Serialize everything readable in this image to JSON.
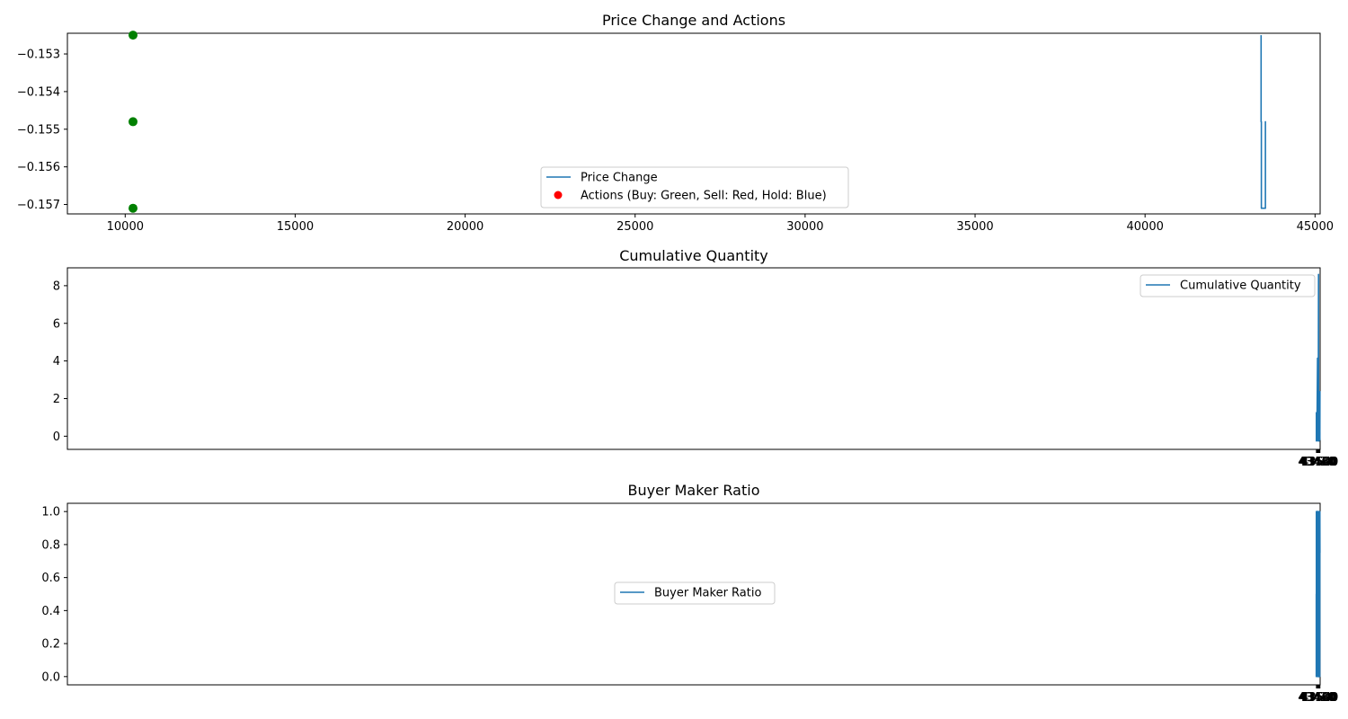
{
  "colors": {
    "line": "#1f77b4",
    "buy": "#008000",
    "sell": "#ff0000",
    "axes": "#000000",
    "legend_border": "#cccccc"
  },
  "chart_data": [
    {
      "type": "line",
      "title": "Price Change and Actions",
      "xlim": [
        8300,
        45150
      ],
      "ylim": [
        -0.15725,
        -0.15245
      ],
      "xticks": [
        10000,
        15000,
        20000,
        25000,
        30000,
        35000,
        40000,
        45000
      ],
      "xtick_labels": [
        "10000",
        "15000",
        "20000",
        "25000",
        "30000",
        "35000",
        "40000",
        "45000"
      ],
      "yticks": [
        -0.157,
        -0.156,
        -0.155,
        -0.154,
        -0.153
      ],
      "ytick_labels": [
        "−0.157",
        "−0.156",
        "−0.155",
        "−0.154",
        "−0.153"
      ],
      "legend": {
        "position": "lower center",
        "entries": [
          "Price Change",
          "Actions (Buy: Green, Sell: Red, Hold: Blue)"
        ]
      },
      "series": [
        {
          "name": "Price Change",
          "kind": "line",
          "x": [
            43413,
            43413,
            43420,
            43420,
            43541,
            43541,
            43541
          ],
          "y": [
            -0.1525,
            -0.1548,
            -0.1548,
            -0.1571,
            -0.1571,
            -0.1548,
            -0.1571
          ]
        },
        {
          "name": "Actions (Buy: Green, Sell: Red, Hold: Blue)",
          "kind": "scatter",
          "x": [
            10230,
            10230,
            10230
          ],
          "y": [
            -0.1525,
            -0.1548,
            -0.1571
          ],
          "colors": [
            "#008000",
            "#008000",
            "#008000"
          ]
        }
      ]
    },
    {
      "type": "line",
      "title": "Cumulative Quantity",
      "xlim": [
        406.6,
        43547.5
      ],
      "ylim": [
        -0.7,
        8.95
      ],
      "xticks": [
        43420,
        43440,
        43460,
        43480,
        43500,
        43520,
        43540
      ],
      "xtick_labels": [
        "43420",
        "43440",
        "43460",
        "43480",
        "43500",
        "43520",
        "43540"
      ],
      "yticks": [
        0,
        2,
        4,
        6,
        8
      ],
      "ytick_labels": [
        "0",
        "2",
        "4",
        "6",
        "8"
      ],
      "legend": {
        "position": "upper right",
        "entries": [
          "Cumulative Quantity"
        ]
      },
      "series": [
        {
          "name": "Cumulative Quantity",
          "x": [
            43413,
            43416,
            43417,
            43418,
            43419,
            43423,
            43424,
            43425,
            43427,
            43428,
            43430,
            43436,
            43437,
            43457,
            43468,
            43469,
            43470,
            43471,
            43474,
            43475,
            43476,
            43479,
            43480,
            43483,
            43492,
            43494,
            43495,
            43497,
            43498,
            43508,
            43509,
            43511,
            43512,
            43513,
            43515,
            43516,
            43517,
            43520,
            43522,
            43523,
            43525,
            43526,
            43530,
            43532,
            43533,
            43535,
            43536,
            43537,
            43541
          ],
          "y": [
            -0.25,
            -0.25,
            -0.1,
            -0.25,
            1.25,
            0.2,
            -0.25,
            -0.25,
            0.05,
            -0.25,
            0.05,
            0.85,
            -0.1,
            4.15,
            2.85,
            -0.1,
            0.1,
            0.25,
            -0.1,
            -0.25,
            -0.15,
            -0.1,
            -0.2,
            -0.15,
            8.6,
            -0.25,
            -0.25,
            -0.1,
            0.25,
            1.35,
            -0.2,
            -0.2,
            -0.25,
            -0.2,
            -0.25,
            -0.1,
            -0.15,
            0.6,
            0.55,
            -0.1,
            1.0,
            0.0,
            0.3,
            -0.05,
            0.2,
            0.4,
            -0.2,
            -0.1,
            2.4
          ]
        }
      ]
    },
    {
      "type": "line",
      "title": "Buyer Maker Ratio",
      "xlim": [
        406.6,
        43547.5
      ],
      "ylim": [
        -0.05,
        1.05
      ],
      "xticks": [
        43420,
        43440,
        43460,
        43480,
        43500,
        43520,
        43540
      ],
      "xtick_labels": [
        "43420",
        "43440",
        "43460",
        "43480",
        "43500",
        "43520",
        "43540"
      ],
      "yticks": [
        0.0,
        0.2,
        0.4,
        0.6,
        0.8,
        1.0
      ],
      "ytick_labels": [
        "0.0",
        "0.2",
        "0.4",
        "0.6",
        "0.8",
        "1.0"
      ],
      "legend": {
        "position": "center",
        "entries": [
          "Buyer Maker Ratio"
        ]
      },
      "series": [
        {
          "name": "Buyer Maker Ratio",
          "x": [
            43413,
            43415,
            43416,
            43417,
            43418,
            43419,
            43423,
            43424,
            43425,
            43427,
            43428,
            43430,
            43436,
            43437,
            43457,
            43468,
            43469,
            43470,
            43471,
            43474,
            43475,
            43476,
            43479,
            43480,
            43483,
            43492,
            43494,
            43495,
            43497,
            43498,
            43508,
            43509,
            43511,
            43512,
            43513,
            43515,
            43516,
            43517,
            43520,
            43522,
            43523,
            43525,
            43526,
            43530,
            43532,
            43533,
            43535,
            43536,
            43537,
            43541
          ],
          "y": [
            0.0,
            0.5,
            0.0,
            1.0,
            0.0,
            1.0,
            0.75,
            1.0,
            0.0,
            0.5,
            0.0,
            0.5,
            0.83,
            1.0,
            1.0,
            0.91,
            1.0,
            0.0,
            1.0,
            0.67,
            1.0,
            0.0,
            0.33,
            0.0,
            0.33,
            0.89,
            0.5,
            0.0,
            0.5,
            0.0,
            0.1,
            0.0,
            0.5,
            0.0,
            1.0,
            0.5,
            1.0,
            0.0,
            0.33,
            0.5,
            1.0,
            0.5,
            1.0,
            0.75,
            0.5,
            0.0,
            0.5,
            0.0,
            1.0,
            0.75
          ]
        }
      ]
    }
  ]
}
